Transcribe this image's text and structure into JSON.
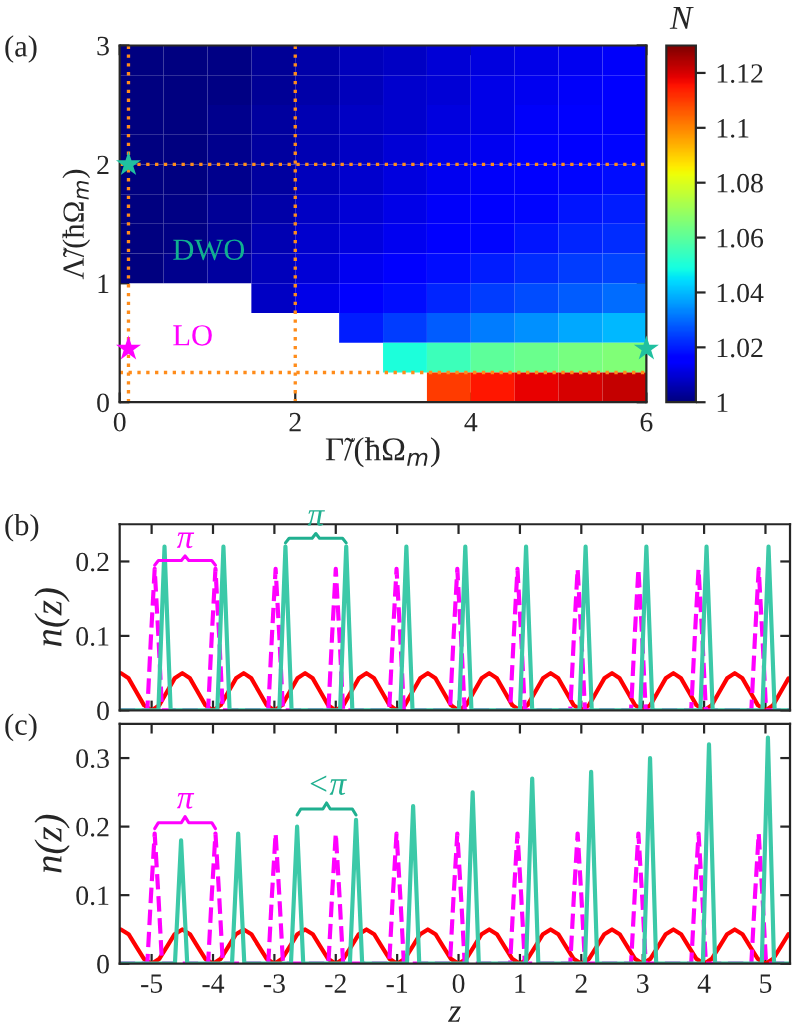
{
  "chart_data": [
    {
      "type": "heatmap",
      "title": "(a)",
      "xlabel": "Γ̃/(ħΩ$_{m}$)",
      "ylabel": "Λ̃/(ħΩ$_{m}$)",
      "clabel": "N",
      "x": [
        0.25,
        0.75,
        1.25,
        1.75,
        2.25,
        2.75,
        3.25,
        3.75,
        4.25,
        4.75,
        5.25,
        5.75
      ],
      "y": [
        2.875,
        2.625,
        2.375,
        2.125,
        1.875,
        1.625,
        1.375,
        1.125,
        0.875,
        0.625,
        0.375,
        0.125
      ],
      "cells": [
        [
          1.0,
          1.0,
          1.001,
          1.003,
          1.005,
          1.007,
          1.008,
          1.01,
          1.011,
          1.012,
          1.013,
          1.014
        ],
        [
          1.0,
          1.0,
          1.001,
          1.003,
          1.005,
          1.007,
          1.009,
          1.01,
          1.012,
          1.013,
          1.014,
          1.015
        ],
        [
          1.0,
          1.0,
          1.002,
          1.004,
          1.006,
          1.008,
          1.009,
          1.011,
          1.012,
          1.014,
          1.015,
          1.016
        ],
        [
          1.0,
          1.0,
          1.002,
          1.004,
          1.006,
          1.008,
          1.01,
          1.012,
          1.013,
          1.015,
          1.016,
          1.017
        ],
        [
          1.0,
          1.0,
          1.002,
          1.004,
          1.007,
          1.009,
          1.011,
          1.013,
          1.014,
          1.016,
          1.017,
          1.018
        ],
        [
          1.0,
          1.001,
          1.003,
          1.005,
          1.008,
          1.01,
          1.012,
          1.014,
          1.016,
          1.017,
          1.019,
          1.02
        ],
        [
          1.0,
          1.001,
          1.003,
          1.006,
          1.009,
          1.011,
          1.013,
          1.015,
          1.017,
          1.019,
          1.021,
          1.022
        ],
        [
          1.0,
          1.002,
          1.004,
          1.007,
          1.01,
          1.013,
          1.015,
          1.018,
          1.02,
          1.022,
          1.024,
          1.025
        ],
        [
          null,
          null,
          null,
          1.008,
          1.012,
          1.015,
          1.018,
          1.021,
          1.024,
          1.026,
          1.028,
          1.03
        ],
        [
          null,
          null,
          null,
          null,
          null,
          1.02,
          1.024,
          1.028,
          1.032,
          1.035,
          1.038,
          1.04
        ],
        [
          null,
          null,
          null,
          null,
          null,
          null,
          1.05,
          1.055,
          1.06,
          1.062,
          1.064,
          1.066
        ],
        [
          null,
          null,
          null,
          null,
          null,
          null,
          null,
          1.11,
          1.115,
          1.118,
          1.12,
          1.122
        ]
      ],
      "clim": [
        1,
        1.13
      ],
      "cticks": [
        1,
        1.02,
        1.04,
        1.06,
        1.08,
        1.1,
        1.12
      ],
      "xlim": [
        0,
        6
      ],
      "ylim": [
        0,
        3
      ],
      "xticks": [
        0,
        2,
        4,
        6
      ],
      "yticks": [
        0,
        1,
        2,
        3
      ],
      "grid": false,
      "ref_lines": [
        {
          "axis": "x",
          "value": 0.1,
          "color": "#ff8c1a",
          "line_style": "dotted"
        },
        {
          "axis": "x",
          "value": 2,
          "color": "#ff8c1a",
          "line_style": "dotted"
        },
        {
          "axis": "y",
          "value": 2,
          "color": "#ff8c1a",
          "line_style": "dotted"
        },
        {
          "axis": "y",
          "value": 0.25,
          "color": "#ff8c1a",
          "line_style": "dotted"
        }
      ],
      "series": [
        {
          "type": "scatter",
          "marker": "star",
          "x": [
            0.1,
            0.1,
            6
          ],
          "values": [
            2,
            0.45,
            0.45
          ],
          "colors": [
            "#20c0a0",
            "#ff00ff",
            "#20c0a0"
          ]
        }
      ],
      "annotations": [
        "DWO",
        "LO"
      ]
    },
    {
      "type": "line",
      "title": "(b)",
      "ylabel": "n(z)",
      "xlim": [
        -5.52,
        5.4
      ],
      "ylim": [
        0,
        0.25
      ],
      "xticks": [
        -5,
        -4,
        -3,
        -2,
        -1,
        0,
        1,
        2,
        3,
        4,
        5
      ],
      "yticks": [
        0,
        0.1,
        0.2
      ],
      "tick_labels": "y",
      "grid": false,
      "series": [
        {
          "color": "#ff0000",
          "line_style": "solid",
          "x": [
            -5.5,
            -5.375,
            -5.25,
            -5.125,
            -5,
            -4.875,
            -4.75,
            -4.625,
            -4.5,
            -4.375,
            -4.25,
            -4.125,
            -4,
            -3.875,
            -3.75,
            -3.625,
            -3.5,
            -3.375,
            -3.25,
            -3.125,
            -3,
            -2.875,
            -2.75,
            -2.625,
            -2.5,
            -2.375,
            -2.25,
            -2.125,
            -2,
            -1.875,
            -1.75,
            -1.625,
            -1.5,
            -1.375,
            -1.25,
            -1.125,
            -1,
            -0.875,
            -0.75,
            -0.625,
            -0.5,
            -0.375,
            -0.25,
            -0.125,
            0,
            0.125,
            0.25,
            0.375,
            0.5,
            0.625,
            0.75,
            0.875,
            1,
            1.125,
            1.25,
            1.375,
            1.5,
            1.625,
            1.75,
            1.875,
            2,
            2.125,
            2.25,
            2.375,
            2.5,
            2.625,
            2.75,
            2.875,
            3,
            3.125,
            3.25,
            3.375,
            3.5,
            3.625,
            3.75,
            3.875,
            4,
            4.125,
            4.25,
            4.375,
            4.5,
            4.625,
            4.75,
            4.875,
            5,
            5.125,
            5.25,
            5.375
          ],
          "values": [
            0.05,
            0.043,
            0.025,
            0.007,
            0,
            0.007,
            0.025,
            0.043,
            0.05,
            0.043,
            0.025,
            0.007,
            0,
            0.007,
            0.025,
            0.043,
            0.05,
            0.043,
            0.025,
            0.007,
            0,
            0.007,
            0.025,
            0.043,
            0.05,
            0.043,
            0.025,
            0.007,
            0,
            0.007,
            0.025,
            0.043,
            0.05,
            0.043,
            0.025,
            0.007,
            0,
            0.007,
            0.025,
            0.043,
            0.05,
            0.043,
            0.025,
            0.007,
            0,
            0.007,
            0.025,
            0.043,
            0.05,
            0.043,
            0.025,
            0.007,
            0,
            0.007,
            0.025,
            0.043,
            0.05,
            0.043,
            0.025,
            0.007,
            0,
            0.007,
            0.025,
            0.043,
            0.05,
            0.043,
            0.025,
            0.007,
            0,
            0.007,
            0.025,
            0.043,
            0.05,
            0.043,
            0.025,
            0.007,
            0,
            0.007,
            0.025,
            0.043,
            0.05,
            0.043,
            0.025,
            0.007,
            0,
            0.007,
            0.025,
            0.043
          ]
        },
        {
          "color": "#ff00ff",
          "line_style": "dashed",
          "x": [
            -5.52,
            -5.07,
            -5.01,
            -4.95,
            -4.89,
            -4.83,
            -4.08,
            -4.02,
            -3.96,
            -3.9,
            -3.84,
            -3.1,
            -3.04,
            -2.98,
            -2.92,
            -2.86,
            -2.12,
            -2.06,
            -2,
            -1.94,
            -1.88,
            -1.13,
            -1.07,
            -1.01,
            -0.95,
            -0.89,
            -0.14,
            -0.08,
            -0.02,
            0.04,
            0.1,
            0.84,
            0.9,
            0.96,
            1.02,
            1.08,
            1.82,
            1.88,
            1.94,
            2,
            2.06,
            2.81,
            2.87,
            2.93,
            2.99,
            3.05,
            3.79,
            3.85,
            3.91,
            3.97,
            4.03,
            4.77,
            4.83,
            4.89,
            4.95,
            5.01,
            5.4
          ],
          "values": [
            0,
            0,
            0.1,
            0.19,
            0.1,
            0,
            0,
            0.1,
            0.19,
            0.1,
            0,
            0,
            0.1,
            0.19,
            0.1,
            0,
            0,
            0.1,
            0.19,
            0.1,
            0,
            0,
            0.1,
            0.19,
            0.1,
            0,
            0,
            0.1,
            0.19,
            0.1,
            0,
            0,
            0.1,
            0.19,
            0.1,
            0,
            0,
            0.1,
            0.19,
            0.1,
            0,
            0,
            0.1,
            0.19,
            0.1,
            0,
            0,
            0.1,
            0.19,
            0.1,
            0,
            0,
            0.1,
            0.19,
            0.1,
            0,
            0
          ]
        },
        {
          "color": "#3cc9a8",
          "line_style": "solid",
          "x": [
            -5.52,
            -4.89,
            -4.84,
            -4.79,
            -4.74,
            -4.69,
            -3.93,
            -3.88,
            -3.83,
            -3.78,
            -3.73,
            -2.92,
            -2.87,
            -2.82,
            -2.77,
            -2.72,
            -1.93,
            -1.88,
            -1.83,
            -1.78,
            -1.73,
            -0.95,
            -0.9,
            -0.85,
            -0.8,
            -0.75,
            0.01,
            0.06,
            0.11,
            0.16,
            0.21,
            1,
            1.05,
            1.1,
            1.15,
            1.2,
            1.97,
            2.02,
            2.07,
            2.12,
            2.17,
            2.96,
            3.01,
            3.06,
            3.11,
            3.16,
            3.94,
            3.99,
            4.04,
            4.09,
            4.14,
            4.95,
            5,
            5.05,
            5.1,
            5.15,
            5.4
          ],
          "values": [
            0,
            0,
            0.11,
            0.22,
            0.11,
            0,
            0,
            0.11,
            0.22,
            0.11,
            0,
            0,
            0.11,
            0.22,
            0.11,
            0,
            0,
            0.11,
            0.22,
            0.11,
            0,
            0,
            0.11,
            0.22,
            0.11,
            0,
            0,
            0.11,
            0.22,
            0.11,
            0,
            0,
            0.11,
            0.22,
            0.11,
            0,
            0,
            0.11,
            0.22,
            0.11,
            0,
            0,
            0.11,
            0.22,
            0.11,
            0,
            0,
            0.11,
            0.22,
            0.11,
            0,
            0,
            0.11,
            0.22,
            0.11,
            0,
            0
          ]
        }
      ],
      "annotations": [
        "π",
        "π"
      ]
    },
    {
      "type": "line",
      "title": "(c)",
      "xlabel": "z",
      "ylabel": "n(z)",
      "xlim": [
        -5.52,
        5.4
      ],
      "ylim": [
        0,
        0.35
      ],
      "xticks": [
        -5,
        -4,
        -3,
        -2,
        -1,
        0,
        1,
        2,
        3,
        4,
        5
      ],
      "yticks": [
        0,
        0.1,
        0.2,
        0.3
      ],
      "grid": false,
      "series": [
        {
          "color": "#ff0000",
          "line_style": "solid",
          "x": [
            -5.5,
            -5.375,
            -5.25,
            -5.125,
            -5,
            -4.875,
            -4.75,
            -4.625,
            -4.5,
            -4.375,
            -4.25,
            -4.125,
            -4,
            -3.875,
            -3.75,
            -3.625,
            -3.5,
            -3.375,
            -3.25,
            -3.125,
            -3,
            -2.875,
            -2.75,
            -2.625,
            -2.5,
            -2.375,
            -2.25,
            -2.125,
            -2,
            -1.875,
            -1.75,
            -1.625,
            -1.5,
            -1.375,
            -1.25,
            -1.125,
            -1,
            -0.875,
            -0.75,
            -0.625,
            -0.5,
            -0.375,
            -0.25,
            -0.125,
            0,
            0.125,
            0.25,
            0.375,
            0.5,
            0.625,
            0.75,
            0.875,
            1,
            1.125,
            1.25,
            1.375,
            1.5,
            1.625,
            1.75,
            1.875,
            2,
            2.125,
            2.25,
            2.375,
            2.5,
            2.625,
            2.75,
            2.875,
            3,
            3.125,
            3.25,
            3.375,
            3.5,
            3.625,
            3.75,
            3.875,
            4,
            4.125,
            4.25,
            4.375,
            4.5,
            4.625,
            4.75,
            4.875,
            5,
            5.125,
            5.25,
            5.375
          ],
          "values": [
            0.05,
            0.043,
            0.025,
            0.007,
            0,
            0.007,
            0.025,
            0.043,
            0.05,
            0.043,
            0.025,
            0.007,
            0,
            0.007,
            0.025,
            0.043,
            0.05,
            0.043,
            0.025,
            0.007,
            0,
            0.007,
            0.025,
            0.043,
            0.05,
            0.043,
            0.025,
            0.007,
            0,
            0.007,
            0.025,
            0.043,
            0.05,
            0.043,
            0.025,
            0.007,
            0,
            0.007,
            0.025,
            0.043,
            0.05,
            0.043,
            0.025,
            0.007,
            0,
            0.007,
            0.025,
            0.043,
            0.05,
            0.043,
            0.025,
            0.007,
            0,
            0.007,
            0.025,
            0.043,
            0.05,
            0.043,
            0.025,
            0.007,
            0,
            0.007,
            0.025,
            0.043,
            0.05,
            0.043,
            0.025,
            0.007,
            0,
            0.007,
            0.025,
            0.043,
            0.05,
            0.043,
            0.025,
            0.007,
            0,
            0.007,
            0.025,
            0.043,
            0.05,
            0.043,
            0.025,
            0.007,
            0,
            0.007,
            0.025,
            0.043
          ]
        },
        {
          "color": "#ff00ff",
          "line_style": "dashed",
          "x": [
            -5.52,
            -5.07,
            -5.01,
            -4.95,
            -4.89,
            -4.83,
            -4.08,
            -4.02,
            -3.96,
            -3.9,
            -3.84,
            -3.1,
            -3.04,
            -2.98,
            -2.92,
            -2.86,
            -2.12,
            -2.06,
            -2,
            -1.94,
            -1.88,
            -1.13,
            -1.07,
            -1.01,
            -0.95,
            -0.89,
            -0.14,
            -0.08,
            -0.02,
            0.04,
            0.1,
            0.84,
            0.9,
            0.96,
            1.02,
            1.08,
            1.82,
            1.88,
            1.94,
            2,
            2.06,
            2.81,
            2.87,
            2.93,
            2.99,
            3.05,
            3.79,
            3.85,
            3.91,
            3.97,
            4.03,
            4.77,
            4.83,
            4.89,
            4.95,
            5.01,
            5.4
          ],
          "values": [
            0,
            0,
            0.1,
            0.19,
            0.1,
            0,
            0,
            0.1,
            0.19,
            0.1,
            0,
            0,
            0.1,
            0.19,
            0.1,
            0,
            0,
            0.1,
            0.19,
            0.1,
            0,
            0,
            0.1,
            0.19,
            0.1,
            0,
            0,
            0.1,
            0.19,
            0.1,
            0,
            0,
            0.1,
            0.19,
            0.1,
            0,
            0,
            0.1,
            0.19,
            0.1,
            0,
            0,
            0.1,
            0.19,
            0.1,
            0,
            0,
            0.1,
            0.19,
            0.1,
            0,
            0,
            0.1,
            0.19,
            0.1,
            0,
            0
          ]
        },
        {
          "color": "#3cc9a8",
          "line_style": "solid",
          "x": [
            -5.52,
            -4.62,
            -4.57,
            -4.52,
            -4.47,
            -4.42,
            -3.69,
            -3.64,
            -3.59,
            -3.54,
            -3.49,
            -2.73,
            -2.68,
            -2.63,
            -2.58,
            -2.53,
            -1.77,
            -1.72,
            -1.67,
            -1.62,
            -1.57,
            -0.84,
            -0.79,
            -0.74,
            -0.69,
            -0.64,
            0.13,
            0.18,
            0.23,
            0.28,
            0.33,
            1.1,
            1.15,
            1.2,
            1.25,
            1.3,
            2.06,
            2.11,
            2.16,
            2.21,
            2.26,
            3.02,
            3.07,
            3.12,
            3.17,
            3.22,
            3.98,
            4.03,
            4.08,
            4.13,
            4.18,
            4.94,
            4.99,
            5.04,
            5.09,
            5.14,
            5.4
          ],
          "values": [
            0,
            0,
            0.09,
            0.18,
            0.09,
            0,
            0,
            0.095,
            0.19,
            0.095,
            0,
            0,
            0.1,
            0.2,
            0.1,
            0,
            0,
            0.105,
            0.21,
            0.105,
            0,
            0,
            0.115,
            0.23,
            0.115,
            0,
            0,
            0.125,
            0.25,
            0.125,
            0,
            0,
            0.135,
            0.27,
            0.135,
            0,
            0,
            0.14,
            0.28,
            0.14,
            0,
            0,
            0.15,
            0.3,
            0.15,
            0,
            0,
            0.16,
            0.32,
            0.16,
            0,
            0,
            0.165,
            0.33,
            0.165,
            0,
            0
          ]
        }
      ],
      "annotations": [
        "π",
        "<π"
      ]
    }
  ]
}
